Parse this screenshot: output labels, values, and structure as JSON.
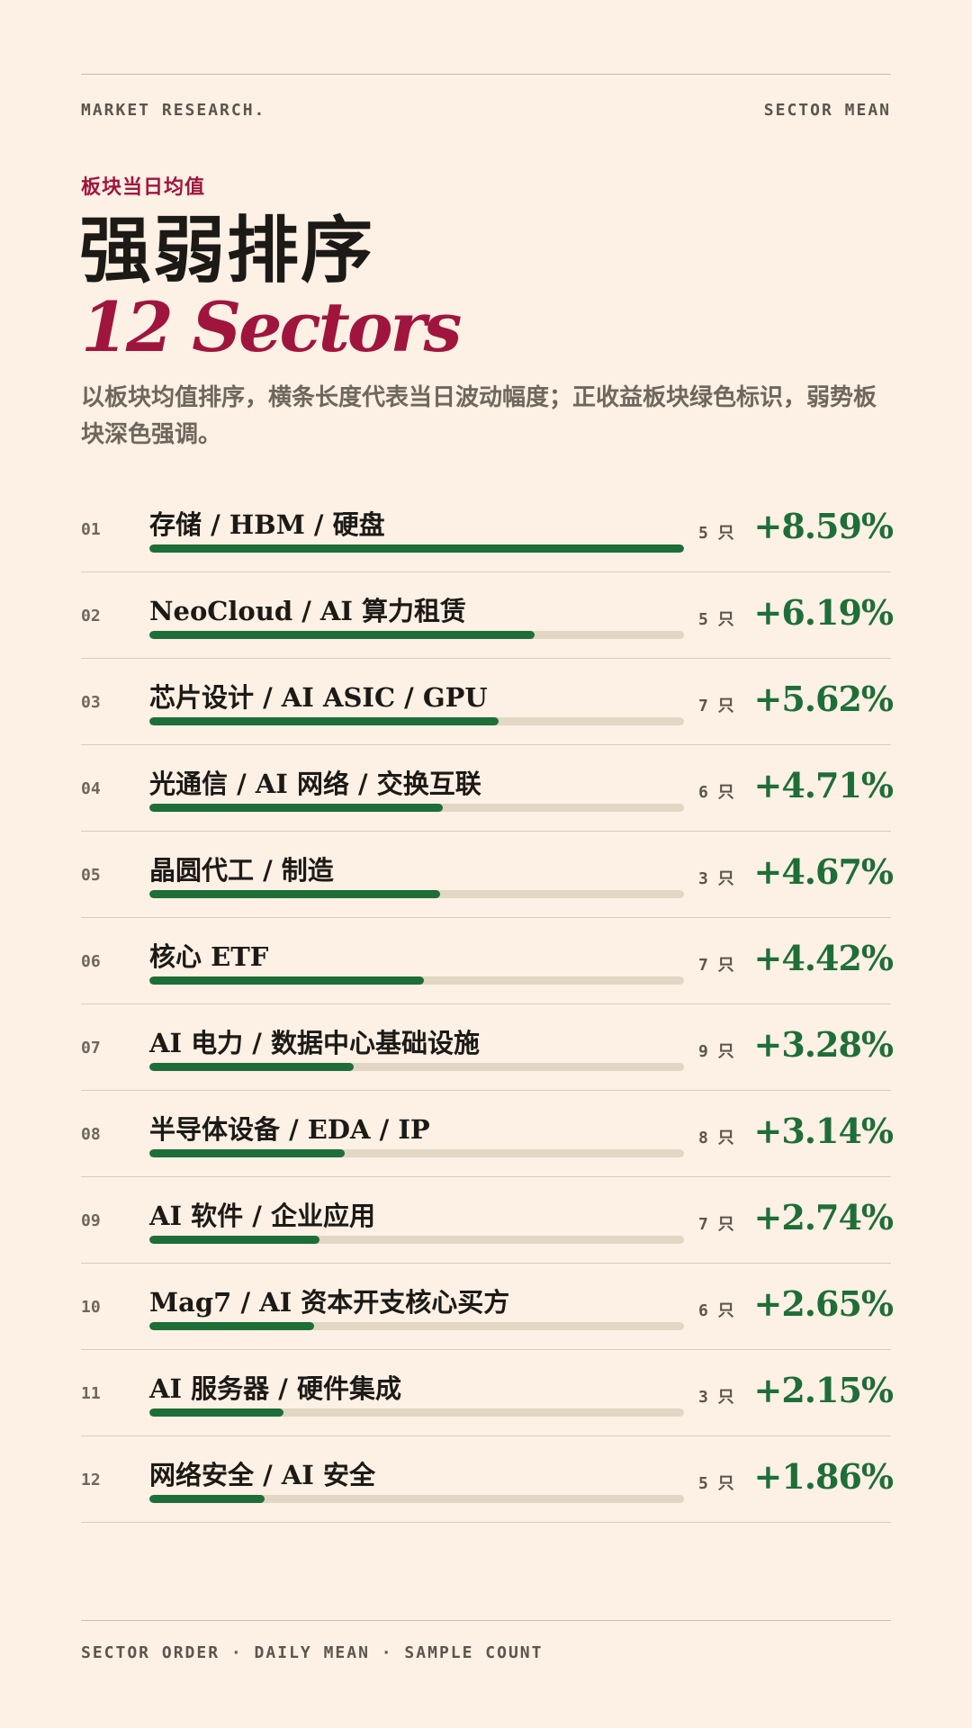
{
  "header": {
    "left_label": "MARKET RESEARCH.",
    "right_label": "SECTOR MEAN"
  },
  "kicker": "板块当日均值",
  "title_cn": "强弱排序",
  "title_en": "12 Sectors",
  "subtitle": "以板块均值排序，横条长度代表当日波动幅度；正收益板块绿色标识，弱势板块深色强调。",
  "colors": {
    "background": "#fdf0e4",
    "accent": "#a0153e",
    "positive": "#1e6e38",
    "track": "#e2d6c4",
    "text": "#1c1a17"
  },
  "chart_data": {
    "type": "bar",
    "orientation": "horizontal",
    "categories": [
      "存储 / HBM / 硬盘",
      "NeoCloud / AI 算力租赁",
      "芯片设计 / AI ASIC / GPU",
      "光通信 / AI 网络 / 交换互联",
      "晶圆代工 / 制造",
      "核心 ETF",
      "AI 电力 / 数据中心基础设施",
      "半导体设备 / EDA / IP",
      "AI 软件 / 企业应用",
      "Mag7 / AI 资本开支核心买方",
      "AI 服务器 / 硬件集成",
      "网络安全 / AI 安全"
    ],
    "ranks": [
      "01",
      "02",
      "03",
      "04",
      "05",
      "06",
      "07",
      "08",
      "09",
      "10",
      "11",
      "12"
    ],
    "values": [
      8.59,
      6.19,
      5.62,
      4.71,
      4.67,
      4.42,
      3.28,
      3.14,
      2.74,
      2.65,
      2.15,
      1.86
    ],
    "value_labels": [
      "+8.59%",
      "+6.19%",
      "+5.62%",
      "+4.71%",
      "+4.67%",
      "+4.42%",
      "+3.28%",
      "+3.14%",
      "+2.74%",
      "+2.65%",
      "+2.15%",
      "+1.86%"
    ],
    "counts": [
      "5 只",
      "5 只",
      "7 只",
      "6 只",
      "3 只",
      "7 只",
      "9 只",
      "8 只",
      "7 只",
      "6 只",
      "3 只",
      "5 只"
    ],
    "bar_fill_fraction": [
      1.0,
      0.72,
      0.654,
      0.548,
      0.544,
      0.514,
      0.382,
      0.365,
      0.319,
      0.308,
      0.25,
      0.216
    ],
    "xlim": [
      0,
      8.59
    ]
  },
  "footer": "SECTOR ORDER · DAILY MEAN · SAMPLE COUNT"
}
